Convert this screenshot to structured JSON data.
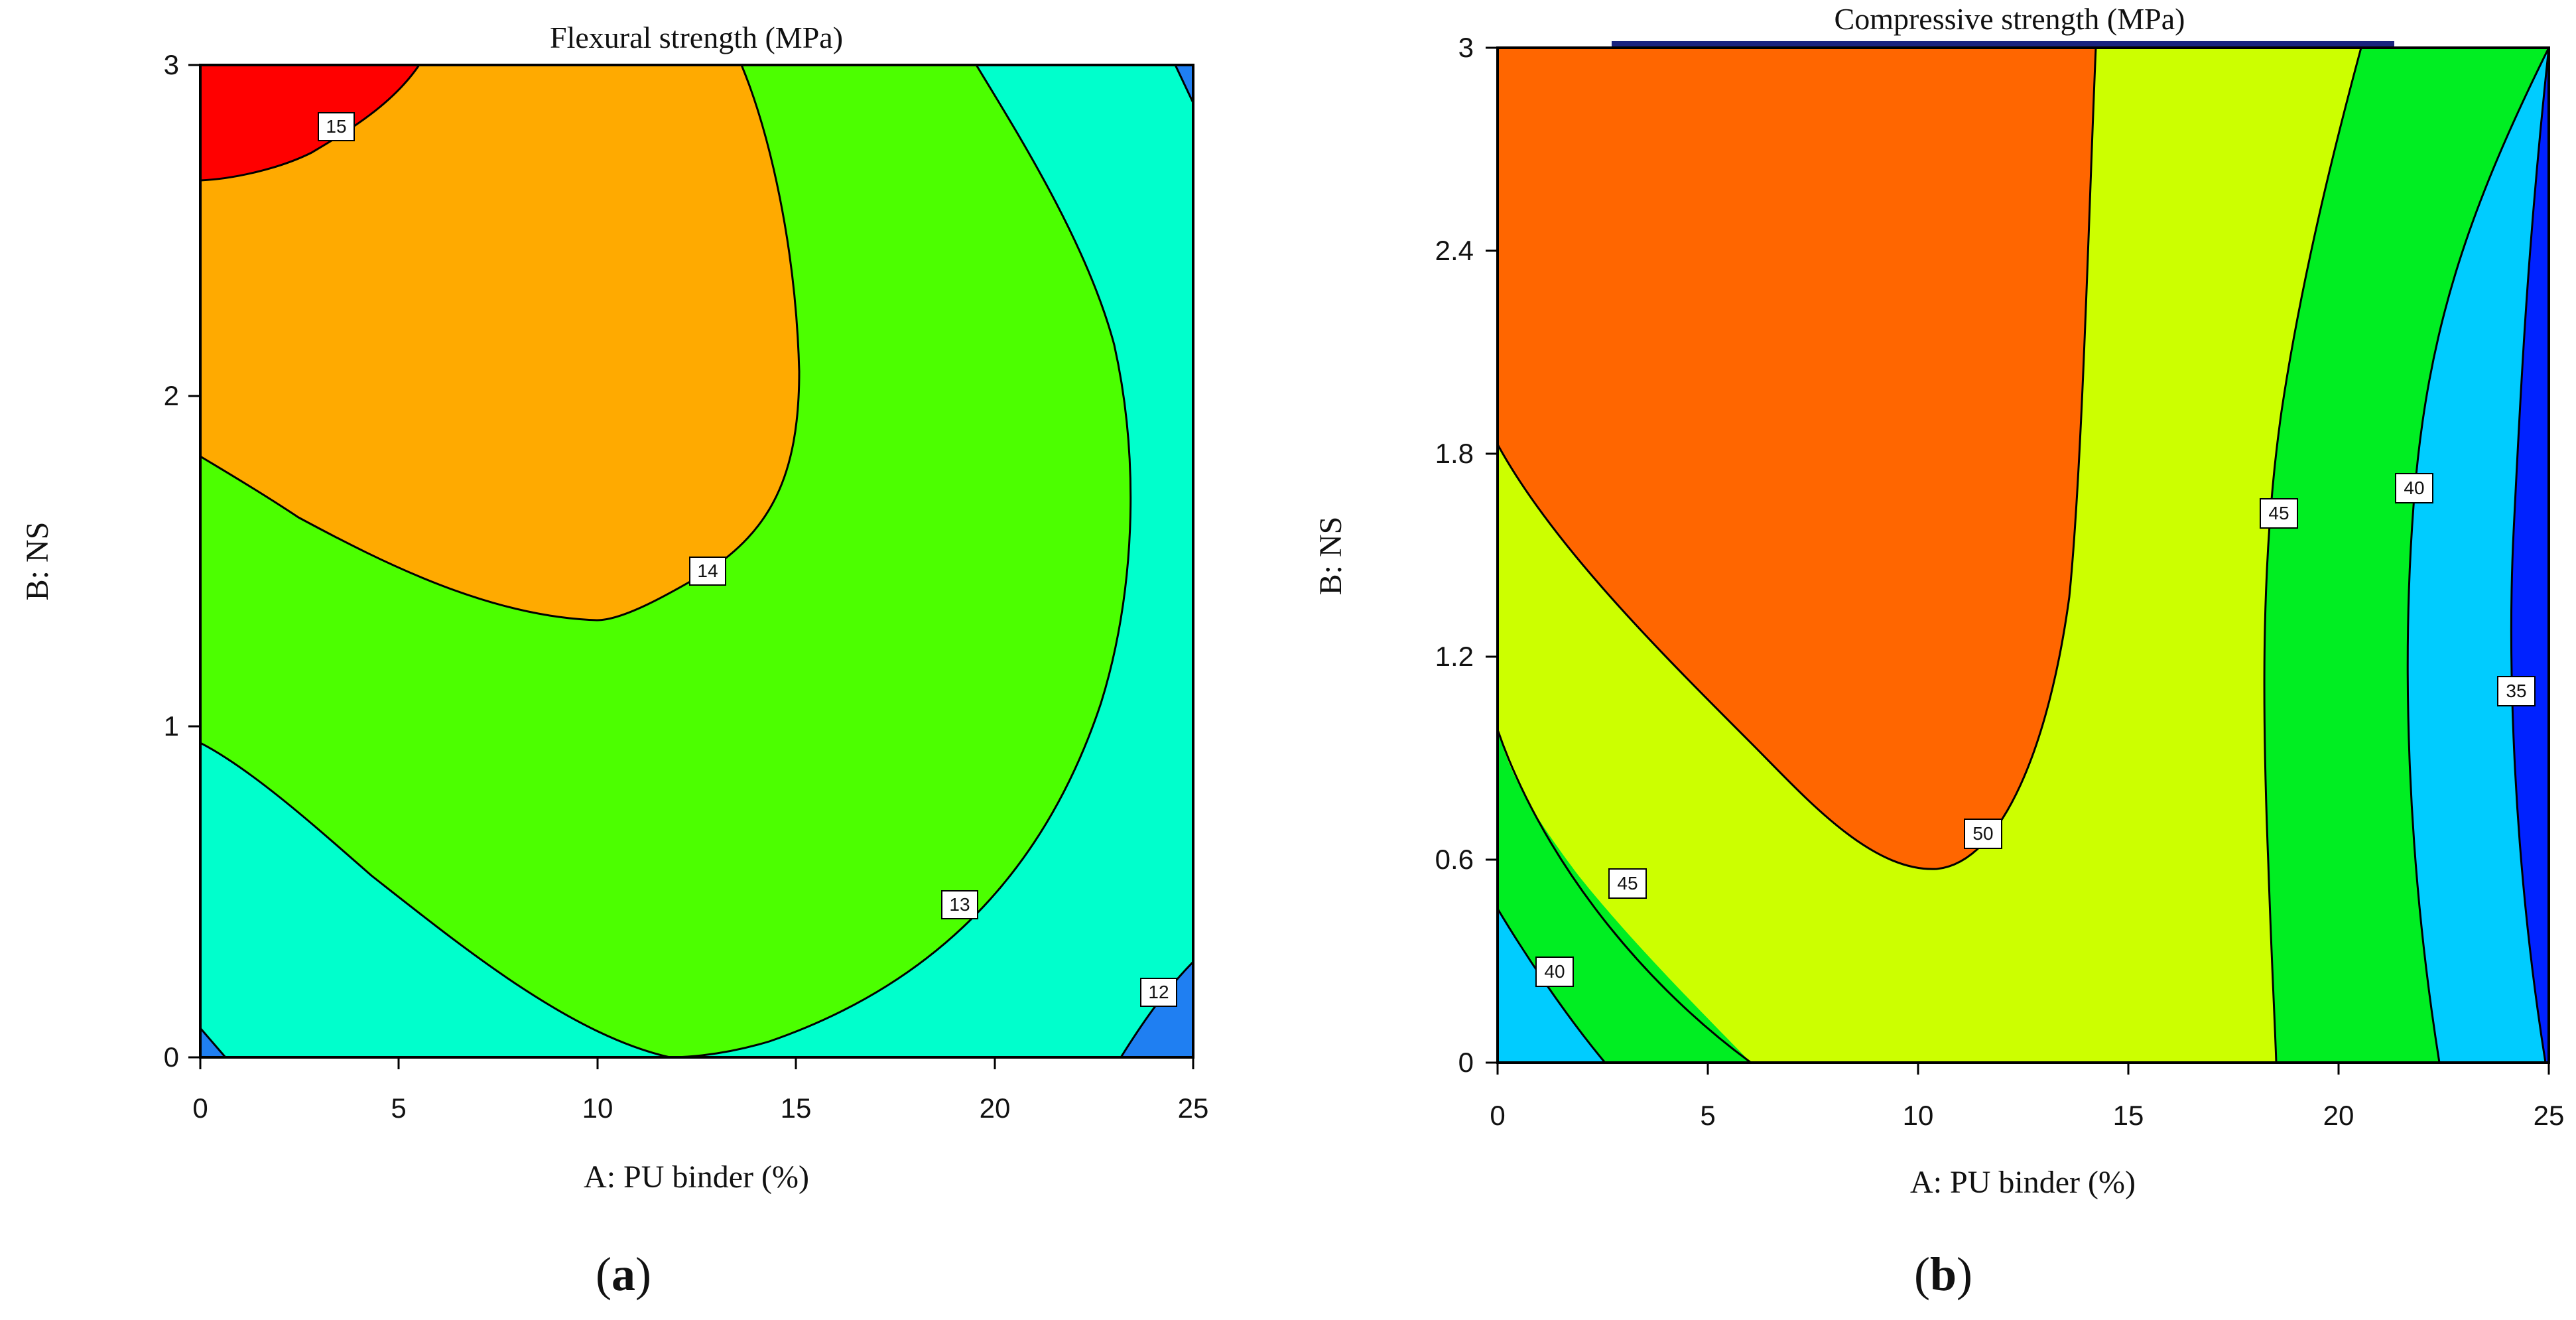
{
  "chart_data": [
    {
      "type": "contour",
      "title": "Flexural strength (MPa)",
      "xlabel": "A: PU binder (%)",
      "ylabel": "B: NS",
      "xlim": [
        0,
        25
      ],
      "ylim": [
        0,
        3
      ],
      "x_ticks": [
        "0",
        "5",
        "10",
        "15",
        "20",
        "25"
      ],
      "y_ticks": [
        "0",
        "1",
        "2",
        "3"
      ],
      "contour_levels": [
        "12",
        "13",
        "14",
        "15"
      ],
      "region_colors": {
        "below_12": "#1f7ff2",
        "12_13": "#00ffcc",
        "13_14": "#4cff00",
        "14_15": "#ffaa00",
        "above_15": "#ff0000"
      },
      "panel_label": "(a)",
      "panel_letter": "a"
    },
    {
      "type": "contour",
      "title": "Compressive strength (MPa)",
      "xlabel": "A: PU binder (%)",
      "ylabel": "B: NS",
      "xlim": [
        0,
        25
      ],
      "ylim": [
        0,
        3
      ],
      "x_ticks": [
        "0",
        "5",
        "10",
        "15",
        "20",
        "25"
      ],
      "y_ticks": [
        "0",
        "0.6",
        "1.2",
        "1.8",
        "2.4",
        "3"
      ],
      "contour_levels": [
        "35",
        "40",
        "45",
        "45",
        "50"
      ],
      "region_colors": {
        "below_35": "#0022ff",
        "35_40": "#00ccff",
        "40_45": "#00ee22",
        "45_50": "#ccff00",
        "above_50": "#ff6600"
      },
      "panel_label": "(b)",
      "panel_letter": "b"
    }
  ]
}
